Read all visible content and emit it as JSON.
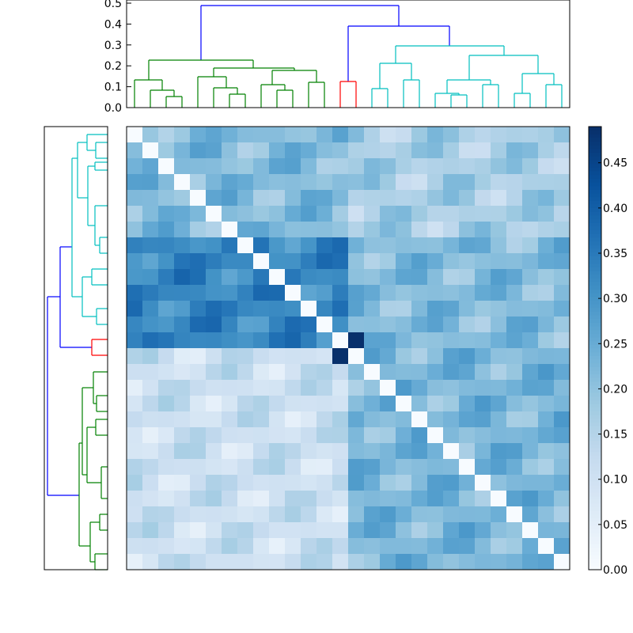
{
  "chart_data": [
    {
      "type": "dendrogram",
      "orientation": "top",
      "ylim": [
        0,
        0.5
      ],
      "yticks": [
        "0.0",
        "0.1",
        "0.2",
        "0.3",
        "0.4",
        "0.5"
      ],
      "leaf_count": 28,
      "colors": {
        "group1": "#008000",
        "group2": "#ff0000",
        "group3": "#00bfbf",
        "root": "#0000ff"
      },
      "link_heights_approx": [
        0.49,
        0.39,
        0.23,
        0.3,
        0.2,
        0.13,
        0.12,
        0.23,
        0.1,
        0.07,
        0.05,
        0.19,
        0.15,
        0.15,
        0.1,
        0.07,
        0.19,
        0.18,
        0.12,
        0.12,
        0.26,
        0.21,
        0.13,
        0.1,
        0.13,
        0.09,
        0.13,
        0.08
      ]
    },
    {
      "type": "dendrogram",
      "orientation": "left",
      "leaf_count": 28,
      "colors": {
        "group1": "#008000",
        "group2": "#ff0000",
        "group3": "#00bfbf",
        "root": "#0000ff"
      }
    },
    {
      "type": "heatmap",
      "rows": 28,
      "cols": 28,
      "colormap": "Blues",
      "zlim": [
        0,
        0.49
      ],
      "colorbar_ticks": [
        "0.00",
        "0.05",
        "0.10",
        "0.15",
        "0.20",
        "0.25",
        "0.30",
        "0.35",
        "0.40",
        "0.45"
      ],
      "blocks": {
        "top_rows": 14,
        "left_cols": 13,
        "values": {
          "upper_left": 0.22,
          "upper_right": 0.17,
          "middle_left": 0.33,
          "middle_right": 0.22,
          "lower_left": 0.11,
          "lower_right": 0.23,
          "split_col": 14
        }
      }
    }
  ]
}
